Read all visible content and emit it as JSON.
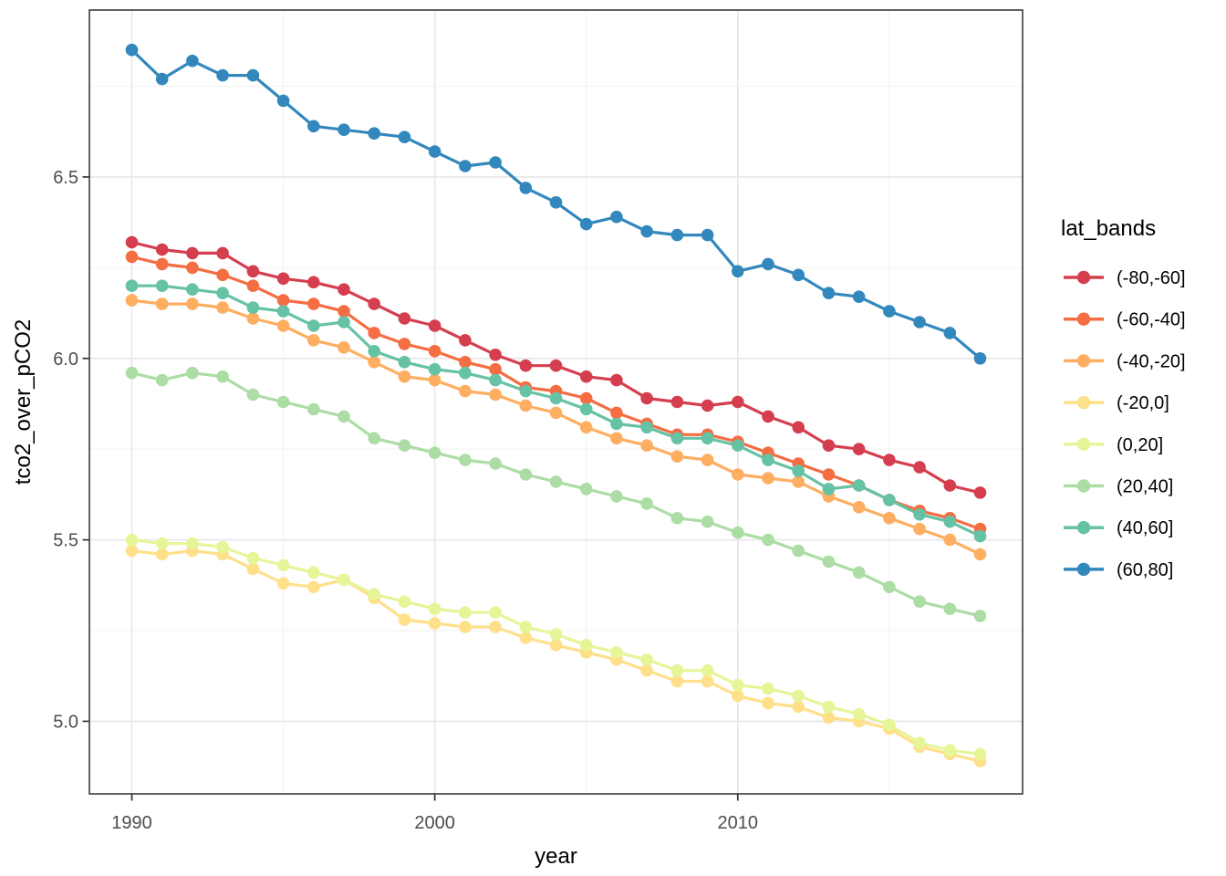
{
  "figure": {
    "background": "#FFFFFF"
  },
  "chart_data": {
    "type": "line",
    "title": "",
    "xlabel": "year",
    "ylabel": "tco2_over_pCO2",
    "legend": {
      "title": "lat_bands",
      "position": "right"
    },
    "grid": true,
    "xlim": [
      1988.6,
      2019.4
    ],
    "ylim": [
      4.8,
      6.96
    ],
    "x_ticks": {
      "values": [
        1990,
        2000,
        2010
      ],
      "labels": [
        "1990",
        "2000",
        "2010"
      ]
    },
    "x_minor": [
      1995,
      2005,
      2015
    ],
    "y_ticks": {
      "values": [
        5.0,
        5.5,
        6.0,
        6.5
      ],
      "labels": [
        "5.0",
        "5.5",
        "6.0",
        "6.5"
      ]
    },
    "y_minor": [
      5.25,
      5.75,
      6.25,
      6.75
    ],
    "x": [
      1990,
      1991,
      1992,
      1993,
      1994,
      1995,
      1996,
      1997,
      1998,
      1999,
      2000,
      2001,
      2002,
      2003,
      2004,
      2005,
      2006,
      2007,
      2008,
      2009,
      2010,
      2011,
      2012,
      2013,
      2014,
      2015,
      2016,
      2017,
      2018
    ],
    "series": [
      {
        "name": "(-80,-60]",
        "color": "#D53E4F",
        "values": [
          6.32,
          6.3,
          6.29,
          6.29,
          6.24,
          6.22,
          6.21,
          6.19,
          6.15,
          6.11,
          6.09,
          6.05,
          6.01,
          5.98,
          5.98,
          5.95,
          5.94,
          5.89,
          5.88,
          5.87,
          5.88,
          5.84,
          5.81,
          5.76,
          5.75,
          5.72,
          5.7,
          5.65,
          5.63
        ]
      },
      {
        "name": "(-60,-40]",
        "color": "#F46D43",
        "values": [
          6.28,
          6.26,
          6.25,
          6.23,
          6.2,
          6.16,
          6.15,
          6.13,
          6.07,
          6.04,
          6.02,
          5.99,
          5.97,
          5.92,
          5.91,
          5.89,
          5.85,
          5.82,
          5.79,
          5.79,
          5.77,
          5.74,
          5.71,
          5.68,
          5.65,
          5.61,
          5.58,
          5.56,
          5.53
        ]
      },
      {
        "name": "(-40,-20]",
        "color": "#FDAE61",
        "values": [
          6.16,
          6.15,
          6.15,
          6.14,
          6.11,
          6.09,
          6.05,
          6.03,
          5.99,
          5.95,
          5.94,
          5.91,
          5.9,
          5.87,
          5.85,
          5.81,
          5.78,
          5.76,
          5.73,
          5.72,
          5.68,
          5.67,
          5.66,
          5.62,
          5.59,
          5.56,
          5.53,
          5.5,
          5.46
        ]
      },
      {
        "name": "(-20,0]",
        "color": "#FEE08B",
        "values": [
          5.47,
          5.46,
          5.47,
          5.46,
          5.42,
          5.38,
          5.37,
          5.39,
          5.34,
          5.28,
          5.27,
          5.26,
          5.26,
          5.23,
          5.21,
          5.19,
          5.17,
          5.14,
          5.11,
          5.11,
          5.07,
          5.05,
          5.04,
          5.01,
          5.0,
          4.98,
          4.93,
          4.91,
          4.89
        ]
      },
      {
        "name": "(0,20]",
        "color": "#E6F598",
        "values": [
          5.5,
          5.49,
          5.49,
          5.48,
          5.45,
          5.43,
          5.41,
          5.39,
          5.35,
          5.33,
          5.31,
          5.3,
          5.3,
          5.26,
          5.24,
          5.21,
          5.19,
          5.17,
          5.14,
          5.14,
          5.1,
          5.09,
          5.07,
          5.04,
          5.02,
          4.99,
          4.94,
          4.92,
          4.91
        ]
      },
      {
        "name": "(20,40]",
        "color": "#ABDDA4",
        "values": [
          5.96,
          5.94,
          5.96,
          5.95,
          5.9,
          5.88,
          5.86,
          5.84,
          5.78,
          5.76,
          5.74,
          5.72,
          5.71,
          5.68,
          5.66,
          5.64,
          5.62,
          5.6,
          5.56,
          5.55,
          5.52,
          5.5,
          5.47,
          5.44,
          5.41,
          5.37,
          5.33,
          5.31,
          5.29
        ]
      },
      {
        "name": "(40,60]",
        "color": "#66C2A5",
        "values": [
          6.2,
          6.2,
          6.19,
          6.18,
          6.14,
          6.13,
          6.09,
          6.1,
          6.02,
          5.99,
          5.97,
          5.96,
          5.94,
          5.91,
          5.89,
          5.86,
          5.82,
          5.81,
          5.78,
          5.78,
          5.76,
          5.72,
          5.69,
          5.64,
          5.65,
          5.61,
          5.57,
          5.55,
          5.51
        ]
      },
      {
        "name": "(60,80]",
        "color": "#3288BD",
        "values": [
          6.85,
          6.77,
          6.82,
          6.78,
          6.78,
          6.71,
          6.64,
          6.63,
          6.62,
          6.61,
          6.57,
          6.53,
          6.54,
          6.47,
          6.43,
          6.37,
          6.39,
          6.35,
          6.34,
          6.34,
          6.24,
          6.26,
          6.23,
          6.18,
          6.17,
          6.13,
          6.1,
          6.07,
          6.0
        ]
      }
    ],
    "styles": {
      "panel_background": "#FFFFFF",
      "grid_major": "#E6E6E6",
      "grid_minor": "#F2F2F2",
      "panel_border": "#474747",
      "tick_color": "#333333",
      "tick_label_color": "#4D4D4D",
      "title_color": "#000000"
    }
  }
}
